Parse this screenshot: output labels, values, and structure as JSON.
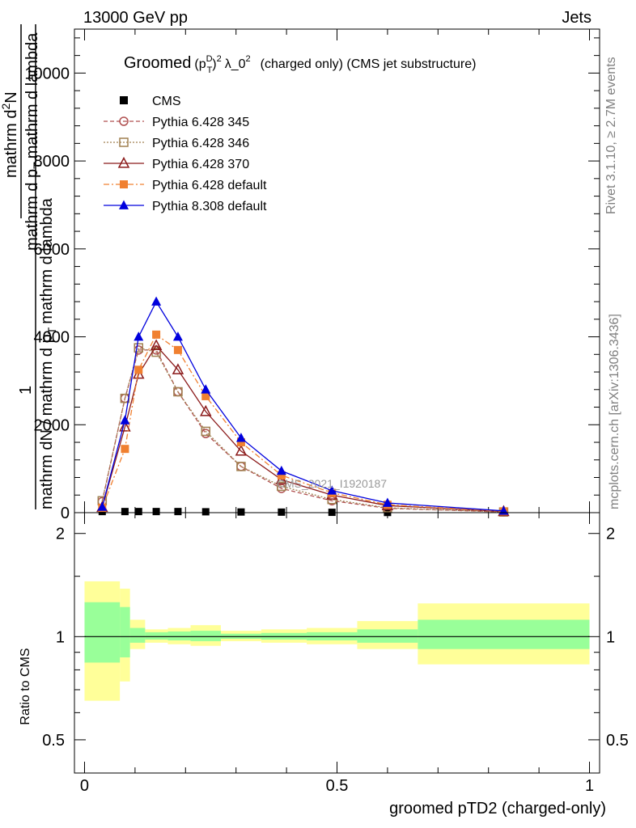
{
  "header": {
    "left": "13000 GeV pp",
    "right": "Jets"
  },
  "side_labels": {
    "rivet": "Rivet 3.1.10, ≥ 2.7M events",
    "mcplots": "mcplots.cern.ch [arXiv:1306.3436]"
  },
  "watermark": "CMS_2021_I1920187",
  "plot_title": {
    "prefix": "Groomed",
    "p": "(p",
    "sup_d": "D",
    "sub_t": "T",
    "close": ")",
    "sup_2": "2",
    "lambda": "λ_0",
    "sup_2b": "2",
    "suffix": "(charged only) (CMS jet substructure)"
  },
  "main_ylabel": {
    "num_1": "1",
    "den_1": "mathrm dN / mathrm d p",
    "den_1_sub": "T",
    "den_1_tail": "mathrm d lambda",
    "num_2": "mathrm d",
    "num_2_sup": "2",
    "num_2_tail": "N",
    "den_2": "mathrm d p",
    "den_2_sub": "T",
    "den_2_tail": "mathrm d lambda"
  },
  "ratio_ylabel": "Ratio to CMS",
  "xlabel": "groomed pTD2 (charged-only)",
  "chart_data": [
    {
      "type": "line",
      "title": "Groomed (p_T^D)^2 λ_0^2 (charged only) (CMS jet substructure)",
      "xlim": [
        -0.02,
        1.02
      ],
      "ylim": [
        0,
        11000
      ],
      "yticks": [
        0,
        2000,
        4000,
        6000,
        8000,
        10000
      ],
      "ytick_labels": [
        "0",
        "2000",
        "4000",
        "6000",
        "8000",
        "10000"
      ],
      "legend_position": "top-left",
      "series": [
        {
          "name": "CMS",
          "color": "#000000",
          "marker": "square-filled",
          "dash": "none",
          "x": [
            0.035,
            0.08,
            0.107,
            0.142,
            0.185,
            0.24,
            0.31,
            0.39,
            0.49,
            0.6,
            0.83
          ],
          "y": [
            25,
            25,
            25,
            25,
            25,
            20,
            15,
            12,
            8,
            4,
            2
          ]
        },
        {
          "name": "Pythia 6.428 345",
          "color": "#b05050",
          "marker": "circle-open",
          "dash": "5,3",
          "x": [
            0.035,
            0.08,
            0.107,
            0.142,
            0.185,
            0.24,
            0.31,
            0.39,
            0.49,
            0.6,
            0.83
          ],
          "y": [
            250,
            2600,
            3700,
            3700,
            2750,
            1800,
            1050,
            550,
            270,
            100,
            15
          ]
        },
        {
          "name": "Pythia 6.428 346",
          "color": "#a08050",
          "marker": "square-open",
          "dash": "2,2",
          "x": [
            0.035,
            0.08,
            0.107,
            0.142,
            0.185,
            0.24,
            0.31,
            0.39,
            0.49,
            0.6,
            0.83
          ],
          "y": [
            270,
            2600,
            3750,
            3650,
            2750,
            1850,
            1050,
            600,
            300,
            110,
            15
          ]
        },
        {
          "name": "Pythia 6.428 370",
          "color": "#8b1a1a",
          "marker": "triangle-open",
          "dash": "none",
          "x": [
            0.035,
            0.08,
            0.107,
            0.142,
            0.185,
            0.24,
            0.31,
            0.39,
            0.49,
            0.6,
            0.83
          ],
          "y": [
            120,
            1950,
            3150,
            3800,
            3250,
            2300,
            1400,
            750,
            400,
            160,
            25
          ]
        },
        {
          "name": "Pythia 6.428 default",
          "color": "#f08030",
          "marker": "square-filled",
          "dash": "7,3,2,3",
          "x": [
            0.035,
            0.08,
            0.107,
            0.142,
            0.185,
            0.24,
            0.31,
            0.39,
            0.49,
            0.6,
            0.83
          ],
          "y": [
            110,
            1450,
            3250,
            4050,
            3700,
            2650,
            1600,
            850,
            450,
            180,
            30
          ]
        },
        {
          "name": "Pythia 8.308 default",
          "color": "#0000dd",
          "marker": "triangle-filled",
          "dash": "none",
          "x": [
            0.035,
            0.08,
            0.107,
            0.142,
            0.185,
            0.24,
            0.31,
            0.39,
            0.49,
            0.6,
            0.83
          ],
          "y": [
            130,
            2100,
            4000,
            4800,
            4000,
            2800,
            1700,
            950,
            500,
            220,
            40
          ]
        }
      ]
    },
    {
      "type": "area",
      "title": "",
      "ylabel": "Ratio to CMS",
      "xlabel": "groomed pTD2 (charged-only)",
      "xlim": [
        -0.02,
        1.02
      ],
      "ylim": [
        0.4,
        2.3
      ],
      "yscale": "log",
      "yticks": [
        0.5,
        1,
        2
      ],
      "ytick_labels": [
        "0.5",
        "1",
        "2"
      ],
      "xticks": [
        0,
        0.5,
        1
      ],
      "xtick_labels": [
        "0",
        "0.5",
        "1"
      ],
      "reference_line": 1,
      "bins": [
        {
          "x0": 0.0,
          "x1": 0.07,
          "inner": [
            0.84,
            1.26
          ],
          "outer": [
            0.65,
            1.45
          ]
        },
        {
          "x0": 0.07,
          "x1": 0.09,
          "inner": [
            0.87,
            1.22
          ],
          "outer": [
            0.74,
            1.38
          ]
        },
        {
          "x0": 0.09,
          "x1": 0.12,
          "inner": [
            0.96,
            1.06
          ],
          "outer": [
            0.92,
            1.12
          ]
        },
        {
          "x0": 0.12,
          "x1": 0.165,
          "inner": [
            0.98,
            1.03
          ],
          "outer": [
            0.96,
            1.05
          ]
        },
        {
          "x0": 0.165,
          "x1": 0.21,
          "inner": [
            0.975,
            1.035
          ],
          "outer": [
            0.95,
            1.06
          ]
        },
        {
          "x0": 0.21,
          "x1": 0.27,
          "inner": [
            0.97,
            1.04
          ],
          "outer": [
            0.94,
            1.08
          ]
        },
        {
          "x0": 0.27,
          "x1": 0.35,
          "inner": [
            0.985,
            1.02
          ],
          "outer": [
            0.97,
            1.04
          ]
        },
        {
          "x0": 0.35,
          "x1": 0.44,
          "inner": [
            0.98,
            1.025
          ],
          "outer": [
            0.96,
            1.05
          ]
        },
        {
          "x0": 0.44,
          "x1": 0.54,
          "inner": [
            0.975,
            1.03
          ],
          "outer": [
            0.95,
            1.06
          ]
        },
        {
          "x0": 0.54,
          "x1": 0.66,
          "inner": [
            0.96,
            1.05
          ],
          "outer": [
            0.92,
            1.11
          ]
        },
        {
          "x0": 0.66,
          "x1": 1.0,
          "inner": [
            0.92,
            1.12
          ],
          "outer": [
            0.83,
            1.25
          ]
        }
      ],
      "inner_color": "#99ff99",
      "outer_color": "#ffff99"
    }
  ]
}
